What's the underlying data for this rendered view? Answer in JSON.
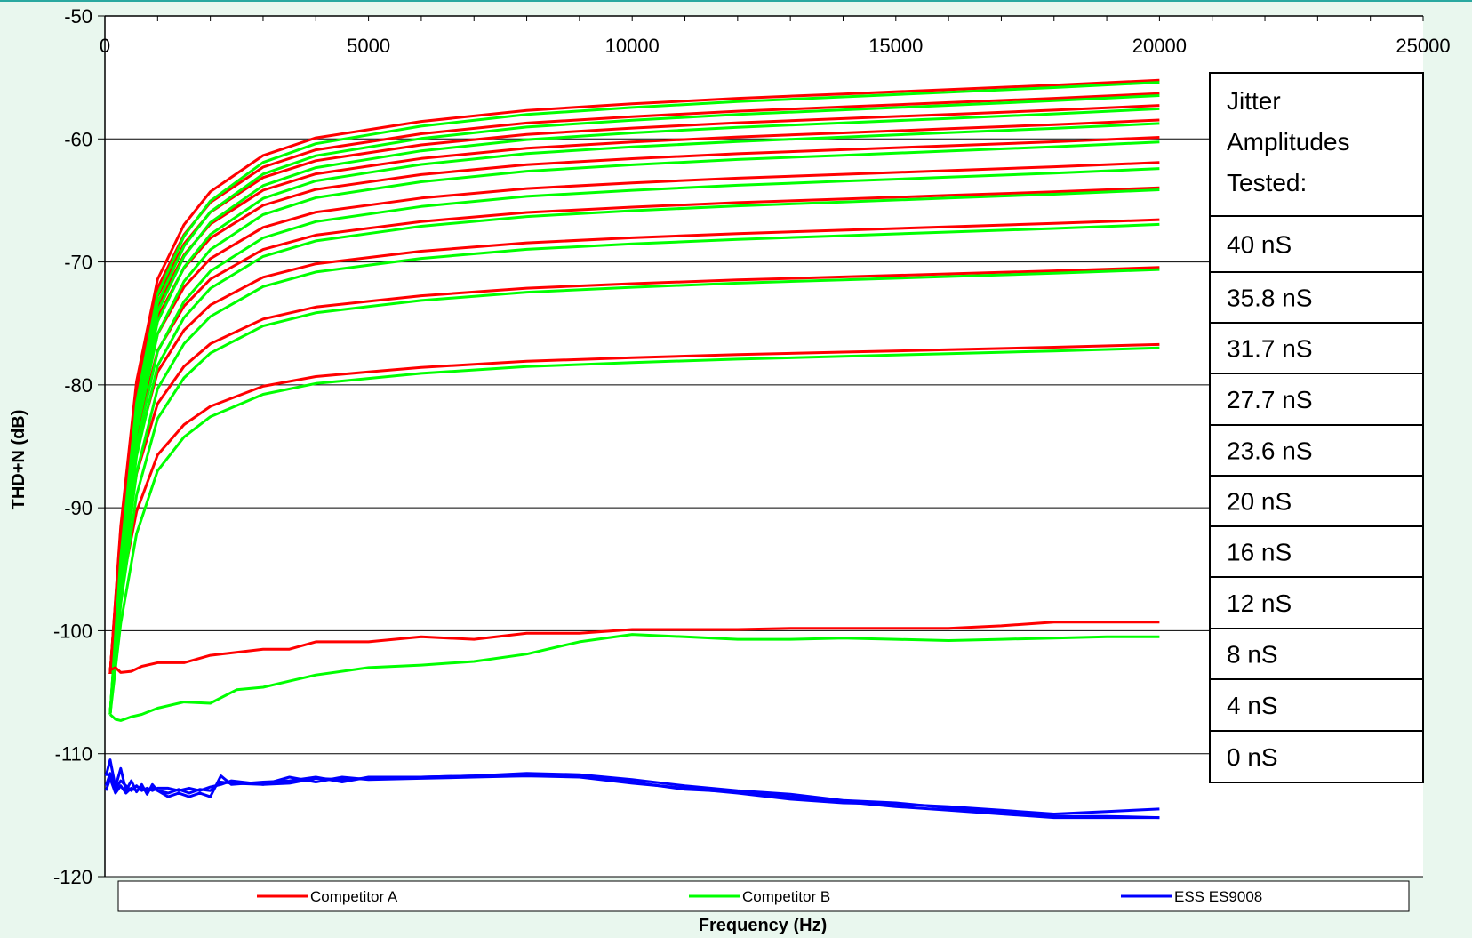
{
  "chart_data": {
    "type": "line",
    "xlabel": "Frequency (Hz)",
    "ylabel": "THD+N (dB)",
    "xlim": [
      0,
      25000
    ],
    "ylim": [
      -120,
      -50
    ],
    "x_ticks": [
      "0",
      "5000",
      "10000",
      "15000",
      "20000",
      "25000"
    ],
    "y_ticks": [
      "-50",
      "-60",
      "-70",
      "-80",
      "-90",
      "-100",
      "-110",
      "-120"
    ],
    "grid": "horizontal",
    "x_axis_position": "top",
    "legend_position": "bottom",
    "legend": [
      {
        "name": "Competitor A",
        "color": "#ff0000"
      },
      {
        "name": "Competitor B",
        "color": "#00ff00"
      },
      {
        "name": "ESS ES9008",
        "color": "#0000ff"
      }
    ],
    "jitter_table": {
      "header": [
        "Jitter",
        "Amplitudes",
        "Tested:"
      ],
      "rows": [
        "40 nS",
        "35.8 nS",
        "31.7 nS",
        "27.7 nS",
        "23.6 nS",
        "20 nS",
        "16 nS",
        "12 nS",
        "8 nS",
        "4 nS",
        "0 nS"
      ]
    },
    "shape_x": [
      100,
      300,
      600,
      1000,
      1500,
      2000,
      3000,
      4000,
      5000,
      6000,
      8000,
      10000,
      12000,
      14000,
      16000,
      18000,
      20000
    ],
    "shape_k": [
      0.0,
      0.268,
      0.532,
      0.718,
      0.817,
      0.877,
      0.943,
      0.975,
      0.99,
      1.005,
      1.025,
      1.037,
      1.047,
      1.055,
      1.063,
      1.071,
      1.08
    ],
    "series": [
      {
        "name": "Competitor A",
        "color": "#ff0000",
        "jitter": "40 nS",
        "y_start": -103.5,
        "y_end": -58.8
      },
      {
        "name": "Competitor A",
        "color": "#ff0000",
        "jitter": "35.8 nS",
        "y_start": -103.5,
        "y_end": -59.8
      },
      {
        "name": "Competitor A",
        "color": "#ff0000",
        "jitter": "31.7 nS",
        "y_start": -103.5,
        "y_end": -60.7
      },
      {
        "name": "Competitor A",
        "color": "#ff0000",
        "jitter": "27.7 nS",
        "y_start": -103.5,
        "y_end": -61.8
      },
      {
        "name": "Competitor A",
        "color": "#ff0000",
        "jitter": "23.6 nS",
        "y_start": -103.5,
        "y_end": -63.1
      },
      {
        "name": "Competitor A",
        "color": "#ff0000",
        "jitter": "20 nS",
        "y_start": -103.5,
        "y_end": -65.0
      },
      {
        "name": "Competitor A",
        "color": "#ff0000",
        "jitter": "16 nS",
        "y_start": -103.5,
        "y_end": -66.9
      },
      {
        "name": "Competitor A",
        "color": "#ff0000",
        "jitter": "12 nS",
        "y_start": -103.5,
        "y_end": -69.3
      },
      {
        "name": "Competitor A",
        "color": "#ff0000",
        "jitter": "8 nS",
        "y_start": -103.5,
        "y_end": -72.9
      },
      {
        "name": "Competitor A",
        "color": "#ff0000",
        "jitter": "4 nS",
        "y_start": -103.5,
        "y_end": -78.7
      },
      {
        "name": "Competitor B",
        "color": "#00ff00",
        "jitter": "40 nS",
        "y_start": -106.8,
        "y_end": -59.2
      },
      {
        "name": "Competitor B",
        "color": "#00ff00",
        "jitter": "35.8 nS",
        "y_start": -106.8,
        "y_end": -60.2
      },
      {
        "name": "Competitor B",
        "color": "#00ff00",
        "jitter": "31.7 nS",
        "y_start": -106.8,
        "y_end": -61.2
      },
      {
        "name": "Competitor B",
        "color": "#00ff00",
        "jitter": "27.7 nS",
        "y_start": -106.8,
        "y_end": -62.3
      },
      {
        "name": "Competitor B",
        "color": "#00ff00",
        "jitter": "23.6 nS",
        "y_start": -106.8,
        "y_end": -63.7
      },
      {
        "name": "Competitor B",
        "color": "#00ff00",
        "jitter": "20 nS",
        "y_start": -106.8,
        "y_end": -65.7
      },
      {
        "name": "Competitor B",
        "color": "#00ff00",
        "jitter": "16 nS",
        "y_start": -106.8,
        "y_end": -67.3
      },
      {
        "name": "Competitor B",
        "color": "#00ff00",
        "jitter": "12 nS",
        "y_start": -106.8,
        "y_end": -69.9
      },
      {
        "name": "Competitor B",
        "color": "#00ff00",
        "jitter": "8 nS",
        "y_start": -106.8,
        "y_end": -73.3
      },
      {
        "name": "Competitor B",
        "color": "#00ff00",
        "jitter": "4 nS",
        "y_start": -106.8,
        "y_end": -79.2
      }
    ],
    "flat_series": [
      {
        "name": "Competitor A",
        "color": "#ff0000",
        "jitter": "0 nS",
        "x": [
          100,
          200,
          300,
          500,
          700,
          1000,
          1500,
          2000,
          3000,
          3500,
          4000,
          5000,
          6000,
          7000,
          8000,
          9000,
          10000,
          11000,
          12000,
          13000,
          14000,
          15000,
          16000,
          17000,
          18000,
          19000,
          20000
        ],
        "y": [
          -103.2,
          -103.0,
          -103.4,
          -103.3,
          -102.9,
          -102.6,
          -102.6,
          -102.0,
          -101.5,
          -101.5,
          -100.9,
          -100.9,
          -100.5,
          -100.7,
          -100.2,
          -100.2,
          -99.9,
          -99.9,
          -99.9,
          -99.8,
          -99.8,
          -99.8,
          -99.8,
          -99.6,
          -99.3,
          -99.3,
          -99.3
        ]
      },
      {
        "name": "Competitor B",
        "color": "#00ff00",
        "jitter": "0 nS",
        "x": [
          100,
          200,
          300,
          500,
          700,
          1000,
          1500,
          2000,
          2500,
          3000,
          3500,
          4000,
          5000,
          6000,
          7000,
          8000,
          9000,
          10000,
          11000,
          12000,
          13000,
          14000,
          15000,
          16000,
          17000,
          18000,
          19000,
          20000
        ],
        "y": [
          -106.8,
          -107.2,
          -107.3,
          -107.0,
          -106.8,
          -106.3,
          -105.8,
          -105.9,
          -104.8,
          -104.6,
          -104.1,
          -103.6,
          -103.0,
          -102.8,
          -102.5,
          -101.9,
          -100.9,
          -100.3,
          -100.5,
          -100.7,
          -100.7,
          -100.6,
          -100.7,
          -100.8,
          -100.7,
          -100.6,
          -100.5,
          -100.5
        ]
      },
      {
        "name": "ESS ES9008",
        "color": "#0000ff",
        "jitter": "all",
        "x": [
          20,
          100,
          200,
          300,
          400,
          500,
          600,
          700,
          800,
          900,
          1000,
          1200,
          1400,
          1600,
          1800,
          2000,
          2200,
          2400,
          3000,
          3500,
          4000,
          4500,
          5000,
          6000,
          7000,
          8000,
          9000,
          10000,
          11000,
          12000,
          13000,
          14000,
          15000,
          16000,
          17000,
          18000,
          19000,
          20000
        ],
        "y": [
          -111.8,
          -110.5,
          -112.7,
          -111.2,
          -113.0,
          -112.2,
          -113.1,
          -112.5,
          -113.3,
          -112.5,
          -113.0,
          -113.5,
          -113.2,
          -113.5,
          -113.2,
          -113.5,
          -111.8,
          -112.5,
          -112.3,
          -112.2,
          -111.9,
          -112.3,
          -111.9,
          -111.9,
          -111.8,
          -111.8,
          -111.8,
          -112.3,
          -112.9,
          -113.1,
          -113.5,
          -113.9,
          -114.3,
          -114.6,
          -114.9,
          -115.2,
          -115.2,
          -115.2
        ]
      },
      {
        "name": "ESS ES9008",
        "color": "#0000ff",
        "jitter": "all",
        "x": [
          20,
          100,
          200,
          300,
          400,
          500,
          600,
          700,
          800,
          900,
          1000,
          1200,
          1400,
          1600,
          1800,
          2000,
          2200,
          2400,
          3000,
          3500,
          4000,
          4500,
          5000,
          6000,
          7000,
          8000,
          9000,
          10000,
          11000,
          12000,
          13000,
          14000,
          15000,
          16000,
          17000,
          18000,
          19000,
          20000
        ],
        "y": [
          -112.6,
          -111.6,
          -112.9,
          -112.2,
          -112.6,
          -113.0,
          -112.6,
          -113.0,
          -112.8,
          -113.0,
          -112.8,
          -112.8,
          -113.0,
          -112.8,
          -113.0,
          -112.7,
          -112.5,
          -112.2,
          -112.5,
          -111.9,
          -112.3,
          -111.9,
          -112.1,
          -112.0,
          -111.9,
          -111.8,
          -111.9,
          -112.4,
          -112.8,
          -113.2,
          -113.7,
          -114.0,
          -114.1,
          -114.3,
          -114.6,
          -114.9,
          -114.7,
          -114.5
        ]
      },
      {
        "name": "ESS ES9008",
        "color": "#0000ff",
        "jitter": "all",
        "x": [
          20,
          100,
          200,
          300,
          400,
          500,
          600,
          700,
          800,
          900,
          1000,
          1200,
          1400,
          1600,
          1800,
          2000,
          2200,
          2400,
          3000,
          3500,
          4000,
          4500,
          5000,
          6000,
          7000,
          8000,
          9000,
          10000,
          11000,
          12000,
          13000,
          14000,
          15000,
          16000,
          17000,
          18000,
          19000,
          20000
        ],
        "y": [
          -113.0,
          -112.0,
          -113.2,
          -112.6,
          -113.2,
          -112.8,
          -113.0,
          -112.8,
          -113.1,
          -112.8,
          -113.0,
          -113.2,
          -112.9,
          -113.2,
          -112.9,
          -113.0,
          -112.3,
          -112.4,
          -112.5,
          -112.4,
          -112.0,
          -112.1,
          -112.0,
          -111.9,
          -111.8,
          -111.6,
          -111.7,
          -112.1,
          -112.6,
          -113.0,
          -113.3,
          -113.8,
          -114.0,
          -114.4,
          -114.7,
          -115.1,
          -115.1,
          -115.2
        ]
      }
    ]
  }
}
